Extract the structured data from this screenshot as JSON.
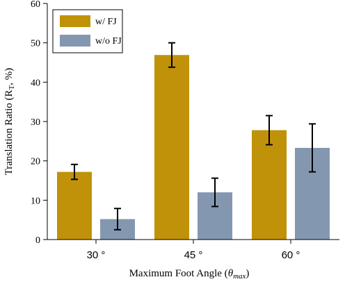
{
  "chart_data": {
    "type": "bar",
    "categories": [
      "30 °",
      "45 °",
      "60 °"
    ],
    "series": [
      {
        "name": "w/ FJ",
        "color": "#C0920A",
        "values": [
          17.2,
          46.9,
          27.8
        ],
        "errors": [
          1.9,
          3.1,
          3.7
        ]
      },
      {
        "name": "w/o FJ",
        "color": "#8497B0",
        "values": [
          5.2,
          12.0,
          23.3
        ],
        "errors": [
          2.7,
          3.6,
          6.1
        ]
      }
    ],
    "ylim": [
      0,
      60
    ],
    "yticks": [
      0,
      10,
      20,
      30,
      40,
      50,
      60
    ],
    "ylabel_main": "Translation Ratio (R",
    "ylabel_sub": "T",
    "ylabel_tail": ", %)",
    "xlabel_main": "Maximum Foot Angle (",
    "xlabel_theta": "θ",
    "xlabel_sub": "max",
    "xlabel_tail": ")",
    "legend_position": "top-left",
    "grid": false
  }
}
